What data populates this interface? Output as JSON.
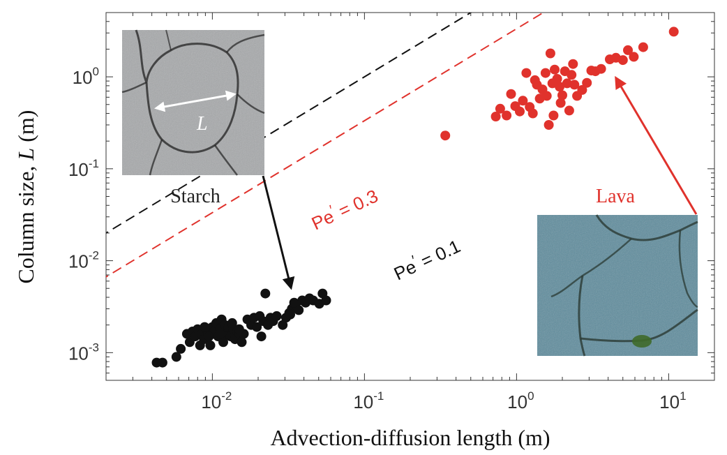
{
  "chart_data": {
    "type": "scatter",
    "title": "",
    "xlabel": "Advection-diffusion length (m)",
    "ylabel_prefix": "Column size, ",
    "ylabel_var": "L",
    "ylabel_suffix": " (m)",
    "xscale": "log",
    "yscale": "log",
    "xlim": [
      0.002,
      20
    ],
    "ylim": [
      0.0005,
      5
    ],
    "grid": false,
    "x_ticks": [
      {
        "value": 0.01,
        "base": "10",
        "exp": "-2"
      },
      {
        "value": 0.1,
        "base": "10",
        "exp": "-1"
      },
      {
        "value": 1,
        "base": "10",
        "exp": "0"
      },
      {
        "value": 10,
        "base": "10",
        "exp": "1"
      }
    ],
    "y_ticks": [
      {
        "value": 0.001,
        "base": "10",
        "exp": "-3"
      },
      {
        "value": 0.01,
        "base": "10",
        "exp": "-2"
      },
      {
        "value": 0.1,
        "base": "10",
        "exp": "-1"
      },
      {
        "value": 1,
        "base": "10",
        "exp": "0"
      }
    ],
    "reference_lines": [
      {
        "pe": 0.3,
        "label_name": "Pe",
        "label_rest": " = 0.3",
        "slope": 3.333,
        "color": "#e0322c"
      },
      {
        "pe": 0.1,
        "label_name": "Pe",
        "label_rest": " = 0.1",
        "slope": 10.0,
        "color": "#111111"
      }
    ],
    "series": [
      {
        "color": "#111111",
        "points": [
          [
            0.0043,
            0.00078
          ],
          [
            0.0047,
            0.00078
          ],
          [
            0.0058,
            0.0009
          ],
          [
            0.0062,
            0.0011
          ],
          [
            0.0068,
            0.0016
          ],
          [
            0.0071,
            0.0013
          ],
          [
            0.0074,
            0.0017
          ],
          [
            0.0077,
            0.0015
          ],
          [
            0.008,
            0.0018
          ],
          [
            0.0083,
            0.0012
          ],
          [
            0.0085,
            0.0016
          ],
          [
            0.0088,
            0.0014
          ],
          [
            0.0091,
            0.0018
          ],
          [
            0.0094,
            0.0016
          ],
          [
            0.0097,
            0.0012
          ],
          [
            0.01,
            0.0019
          ],
          [
            0.0103,
            0.0017
          ],
          [
            0.0106,
            0.0021
          ],
          [
            0.0109,
            0.0015
          ],
          [
            0.0112,
            0.0018
          ],
          [
            0.0115,
            0.0023
          ],
          [
            0.0118,
            0.0013
          ],
          [
            0.0121,
            0.002
          ],
          [
            0.0124,
            0.0016
          ],
          [
            0.0128,
            0.0019
          ],
          [
            0.0132,
            0.0015
          ],
          [
            0.0137,
            0.0018
          ],
          [
            0.0141,
            0.0014
          ],
          [
            0.0146,
            0.0017
          ],
          [
            0.0151,
            0.0016
          ],
          [
            0.0156,
            0.0013
          ],
          [
            0.0161,
            0.0016
          ],
          [
            0.017,
            0.0023
          ],
          [
            0.018,
            0.002
          ],
          [
            0.0188,
            0.0024
          ],
          [
            0.0196,
            0.0019
          ],
          [
            0.0205,
            0.0025
          ],
          [
            0.021,
            0.0015
          ],
          [
            0.0216,
            0.0022
          ],
          [
            0.0223,
            0.0044
          ],
          [
            0.0232,
            0.002
          ],
          [
            0.0241,
            0.0024
          ],
          [
            0.0251,
            0.0022
          ],
          [
            0.0265,
            0.0025
          ],
          [
            0.029,
            0.002
          ],
          [
            0.0305,
            0.0024
          ],
          [
            0.032,
            0.0027
          ],
          [
            0.0333,
            0.003
          ],
          [
            0.0352,
            0.0033
          ],
          [
            0.037,
            0.0029
          ],
          [
            0.039,
            0.0037
          ],
          [
            0.041,
            0.0035
          ],
          [
            0.0435,
            0.0039
          ],
          [
            0.046,
            0.0037
          ],
          [
            0.0505,
            0.0034
          ],
          [
            0.053,
            0.0044
          ],
          [
            0.056,
            0.0037
          ],
          [
            0.0325,
            0.0026
          ],
          [
            0.0345,
            0.0035
          ],
          [
            0.0135,
            0.0021
          ],
          [
            0.0095,
            0.0015
          ],
          [
            0.0089,
            0.0019
          ],
          [
            0.0113,
            0.0016
          ],
          [
            0.015,
            0.0018
          ]
        ]
      },
      {
        "color": "#e0322c",
        "points": [
          [
            0.34,
            0.23
          ],
          [
            0.73,
            0.37
          ],
          [
            0.78,
            0.45
          ],
          [
            0.86,
            0.38
          ],
          [
            0.92,
            0.65
          ],
          [
            0.98,
            0.48
          ],
          [
            1.05,
            0.42
          ],
          [
            1.1,
            0.55
          ],
          [
            1.16,
            1.1
          ],
          [
            1.22,
            0.47
          ],
          [
            1.28,
            0.4
          ],
          [
            1.36,
            0.82
          ],
          [
            1.42,
            0.58
          ],
          [
            1.48,
            0.73
          ],
          [
            1.55,
            1.1
          ],
          [
            1.63,
            0.3
          ],
          [
            1.67,
            1.8
          ],
          [
            1.72,
            0.85
          ],
          [
            1.78,
            1.2
          ],
          [
            1.85,
            0.95
          ],
          [
            1.92,
            0.78
          ],
          [
            2.0,
            0.63
          ],
          [
            2.08,
            1.15
          ],
          [
            2.15,
            0.85
          ],
          [
            2.22,
            0.43
          ],
          [
            2.3,
            1.05
          ],
          [
            2.4,
            0.82
          ],
          [
            2.5,
            0.62
          ],
          [
            2.7,
            0.72
          ],
          [
            2.9,
            0.86
          ],
          [
            3.1,
            1.17
          ],
          [
            3.3,
            1.15
          ],
          [
            3.6,
            1.22
          ],
          [
            4.1,
            1.55
          ],
          [
            4.5,
            1.61
          ],
          [
            5.0,
            1.52
          ],
          [
            5.4,
            1.95
          ],
          [
            5.9,
            1.65
          ],
          [
            6.8,
            2.1
          ],
          [
            10.8,
            3.1
          ],
          [
            1.75,
            0.38
          ],
          [
            1.58,
            0.62
          ],
          [
            2.35,
            1.38
          ],
          [
            1.32,
            0.92
          ],
          [
            1.95,
            0.52
          ]
        ]
      }
    ],
    "annotations": [
      {
        "text": "Starch",
        "color": "#222222"
      },
      {
        "text": "Lava",
        "color": "#e0322c"
      },
      {
        "text": "L",
        "color": "#ffffff"
      }
    ]
  }
}
